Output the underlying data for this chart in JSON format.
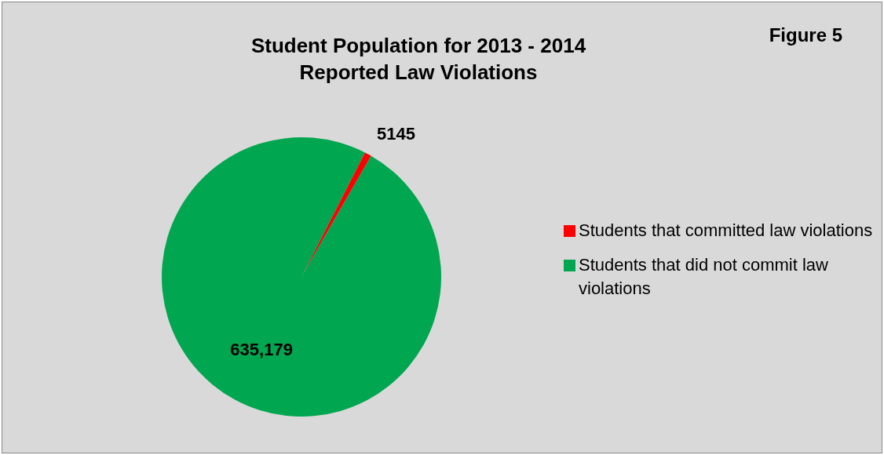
{
  "chart_data": {
    "type": "pie",
    "title": "Student Population for 2013 - 2014\nReported Law Violations",
    "categories": [
      "Students that committed law violations",
      "Students that did not commit law violations"
    ],
    "values": [
      5145,
      635179
    ],
    "value_labels": [
      "5145",
      "635,179"
    ],
    "colors": [
      "#ff0000",
      "#00a650"
    ],
    "legend": "right",
    "annotations": [
      "Figure 5"
    ]
  }
}
